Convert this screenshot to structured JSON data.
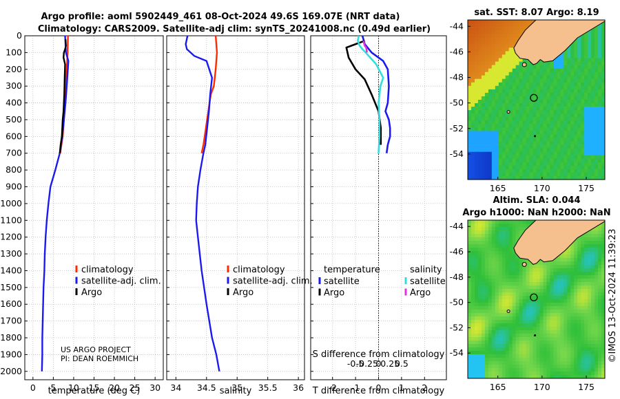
{
  "title": {
    "line1": "Argo profile: aoml 5902449_461 08-Oct-2024 49.6S 169.07E (NRT data)",
    "line2": "Climatology: CARS2009. Satellite-adj clim: synTS_20241008.nc (0.49d earlier)"
  },
  "colors": {
    "climatology": "#ff2a00",
    "satellite_adj": "#1a1aee",
    "argo": "#000000",
    "salinity_sat": "#33dddd",
    "salinity_argo": "#dd33dd",
    "land": "#f5c08e"
  },
  "credits": {
    "line1": "US ARGO PROJECT",
    "line2": "PI: DEAN ROEMMICH",
    "watermark": "©IMOS 13-Oct-2024 11:39:23"
  },
  "depth_ticks": [
    "0",
    "100",
    "200",
    "300",
    "400",
    "500",
    "600",
    "700",
    "800",
    "900",
    "1000",
    "1100",
    "1200",
    "1300",
    "1400",
    "1500",
    "1600",
    "1700",
    "1800",
    "1900",
    "2000"
  ],
  "chart_data": [
    {
      "type": "line",
      "name": "temperature-panel",
      "xlabel": "temperature (deg C)",
      "ylabel": "depth",
      "xlim": [
        -2,
        32
      ],
      "ylim": [
        2050,
        0
      ],
      "x_ticks": [
        "0",
        "5",
        "10",
        "15",
        "20",
        "25",
        "30"
      ],
      "legend": [
        "climatology",
        "satellite-adj. clim.",
        "Argo"
      ],
      "series": [
        {
          "name": "climatology",
          "x": [
            8.6,
            8.5,
            8.3,
            8.0,
            7.8,
            7.6,
            7.3,
            6.7
          ],
          "y": [
            0,
            100,
            200,
            300,
            400,
            500,
            600,
            700
          ]
        },
        {
          "name": "satellite-adj. clim.",
          "x": [
            7.9,
            8.1,
            8.7,
            8.3,
            8.0,
            7.6,
            7.2,
            6.6,
            5.5,
            4.3,
            3.8,
            3.4,
            3.1,
            2.9,
            2.8,
            2.6,
            2.5,
            2.4,
            2.3,
            2.3,
            2.2
          ],
          "y": [
            0,
            100,
            150,
            300,
            400,
            500,
            600,
            700,
            800,
            900,
            1000,
            1100,
            1200,
            1300,
            1400,
            1500,
            1600,
            1700,
            1800,
            1900,
            2000
          ]
        },
        {
          "name": "Argo",
          "x": [
            8.0,
            8.1,
            7.9,
            7.6,
            7.5,
            7.9,
            7.8,
            7.7,
            7.5,
            7.3,
            7.1,
            6.8,
            6.6
          ],
          "y": [
            20,
            60,
            80,
            100,
            130,
            170,
            250,
            350,
            450,
            500,
            600,
            650,
            700
          ]
        }
      ]
    },
    {
      "type": "line",
      "name": "salinity-panel",
      "xlabel": "salinity",
      "xlim": [
        33.85,
        36.1
      ],
      "ylim": [
        2050,
        0
      ],
      "x_ticks": [
        "34",
        "34.5",
        "35",
        "35.5",
        "36"
      ],
      "legend": [
        "climatology",
        "satellite-adj. clim.",
        "Argo"
      ],
      "series": [
        {
          "name": "climatology",
          "x": [
            34.65,
            34.67,
            34.65,
            34.62,
            34.57,
            34.53,
            34.49,
            34.45,
            34.42
          ],
          "y": [
            0,
            100,
            200,
            300,
            350,
            450,
            550,
            650,
            700
          ]
        },
        {
          "name": "satellite-adj. clim.",
          "x": [
            34.19,
            34.16,
            34.18,
            34.3,
            34.5,
            34.59,
            34.56,
            34.54,
            34.51,
            34.48,
            34.45,
            34.4,
            34.36,
            34.34,
            34.33,
            34.36,
            34.42,
            34.5,
            34.59,
            34.66,
            34.71
          ],
          "y": [
            0,
            50,
            80,
            120,
            150,
            250,
            350,
            450,
            550,
            650,
            700,
            800,
            900,
            1000,
            1100,
            1200,
            1400,
            1600,
            1800,
            1900,
            2000
          ]
        },
        {
          "name": "Argo",
          "x": [],
          "y": []
        }
      ]
    },
    {
      "type": "line",
      "name": "difference-panel",
      "xlabel": "T difference from climatology",
      "xlabel_top": "S difference from climatology",
      "xlim": [
        -2.95,
        2.95
      ],
      "ylim": [
        2050,
        0
      ],
      "x_ticks": [
        "-2",
        "-1",
        "0",
        "1",
        "2"
      ],
      "x_ticks_top": [
        "-0.5",
        "-0.25",
        "0",
        "0.25",
        "0.5"
      ],
      "legend_temperature": [
        "satellite",
        "Argo"
      ],
      "legend_salinity": [
        "satellite",
        "Argo"
      ],
      "legend_headers": [
        "temperature",
        "salinity"
      ],
      "series": [
        {
          "name": "temperature satellite",
          "x": [
            -0.7,
            -0.6,
            -0.3,
            0.2,
            0.4,
            0.45,
            0.4,
            0.3,
            0.45,
            0.5,
            0.5,
            0.4,
            0.35
          ],
          "y": [
            0,
            50,
            100,
            150,
            200,
            300,
            400,
            450,
            500,
            550,
            600,
            650,
            700
          ]
        },
        {
          "name": "temperature Argo",
          "x": [
            -0.6,
            -1.4,
            -1.3,
            -1.0,
            -0.6,
            -0.3,
            0.0,
            0.1,
            0.1
          ],
          "y": [
            30,
            70,
            130,
            200,
            260,
            350,
            450,
            550,
            650
          ]
        },
        {
          "name": "salinity satellite",
          "x": [
            -0.43,
            -0.45,
            -0.41,
            -0.35,
            -0.28,
            -0.05,
            0.1,
            0.04,
            0.0,
            0.02,
            0.02,
            0.0
          ],
          "y": [
            0,
            30,
            60,
            80,
            100,
            170,
            250,
            300,
            400,
            500,
            600,
            700
          ]
        },
        {
          "name": "salinity Argo",
          "x": [
            -0.33,
            -0.3,
            -0.27,
            -0.25
          ],
          "y": [
            30,
            60,
            70,
            100
          ]
        }
      ]
    }
  ],
  "maps": [
    {
      "name": "sst-map",
      "title": "sat. SST: 8.07 Argo: 8.19",
      "x_ticks": [
        "165",
        "170",
        "175"
      ],
      "y_ticks": [
        "-44",
        "-46",
        "-48",
        "-50",
        "-52",
        "-54"
      ],
      "float_position": [
        169.07,
        -49.6
      ]
    },
    {
      "name": "sla-map",
      "title_line1": "Altim. SLA: 0.044",
      "title_line2": "Argo h1000: NaN h2000: NaN",
      "x_ticks": [
        "165",
        "170",
        "175"
      ],
      "y_ticks": [
        "-44",
        "-46",
        "-48",
        "-50",
        "-52",
        "-54"
      ],
      "float_position": [
        169.07,
        -49.6
      ]
    }
  ]
}
